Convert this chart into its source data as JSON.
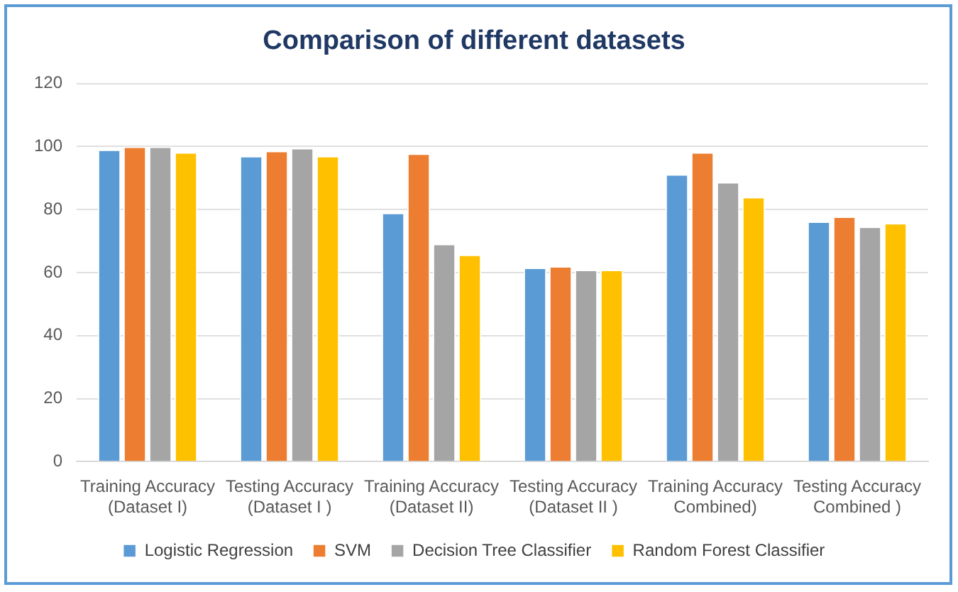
{
  "chart_data": {
    "type": "bar",
    "title": "Comparison of different datasets",
    "categories": [
      "Training Accuracy (Dataset I)",
      "Testing Accuracy (Dataset I )",
      "Training Accuracy (Dataset II)",
      "Testing Accuracy (Dataset II )",
      "Training Accuracy Combined)",
      "Testing Accuracy Combined )"
    ],
    "series": [
      {
        "name": "Logistic Regression",
        "color": "#5b9bd5",
        "values": [
          99,
          97,
          79,
          61.6,
          91.2,
          76.2
        ]
      },
      {
        "name": "SVM",
        "color": "#ed7d31",
        "values": [
          100,
          98.6,
          97.8,
          62,
          98.2,
          77.8
        ]
      },
      {
        "name": "Decision Tree Classifier",
        "color": "#a5a5a5",
        "values": [
          100,
          99.5,
          69.1,
          60.9,
          88.7,
          74.6
        ]
      },
      {
        "name": "Random Forest Classifier",
        "color": "#ffc000",
        "values": [
          98.2,
          97,
          65.7,
          60.9,
          84,
          75.7
        ]
      }
    ],
    "ylim": [
      0,
      120
    ],
    "yticks": [
      0,
      20,
      40,
      60,
      80,
      100,
      120
    ],
    "grid": "y",
    "legend": "bottom"
  }
}
